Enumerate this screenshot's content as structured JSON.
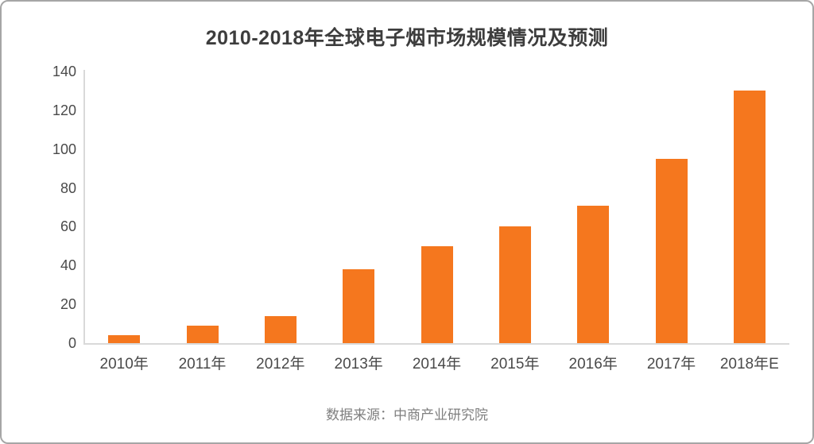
{
  "page": {
    "background": "#ffffff",
    "border_color": "#a6a6a6"
  },
  "chart_data": {
    "type": "bar",
    "title": "2010-2018年全球电子烟市场规模情况及预测",
    "categories": [
      "2010年",
      "2011年",
      "2012年",
      "2013年",
      "2014年",
      "2015年",
      "2016年",
      "2017年",
      "2018年E"
    ],
    "values": [
      4,
      9,
      14,
      38,
      50,
      60,
      71,
      95,
      130
    ],
    "ylim": [
      0,
      140
    ],
    "yticks": [
      0,
      20,
      40,
      60,
      80,
      100,
      120,
      140
    ],
    "grid": false,
    "legend_position": "none",
    "bar_color": "#f5771e",
    "axis_line_color": "#d9d9d9",
    "tick_label_color": "#4a4a4a",
    "title_color": "#3d3d3d"
  },
  "source": {
    "label": "数据来源：中商产业研究院",
    "color": "#7f7f7f"
  }
}
